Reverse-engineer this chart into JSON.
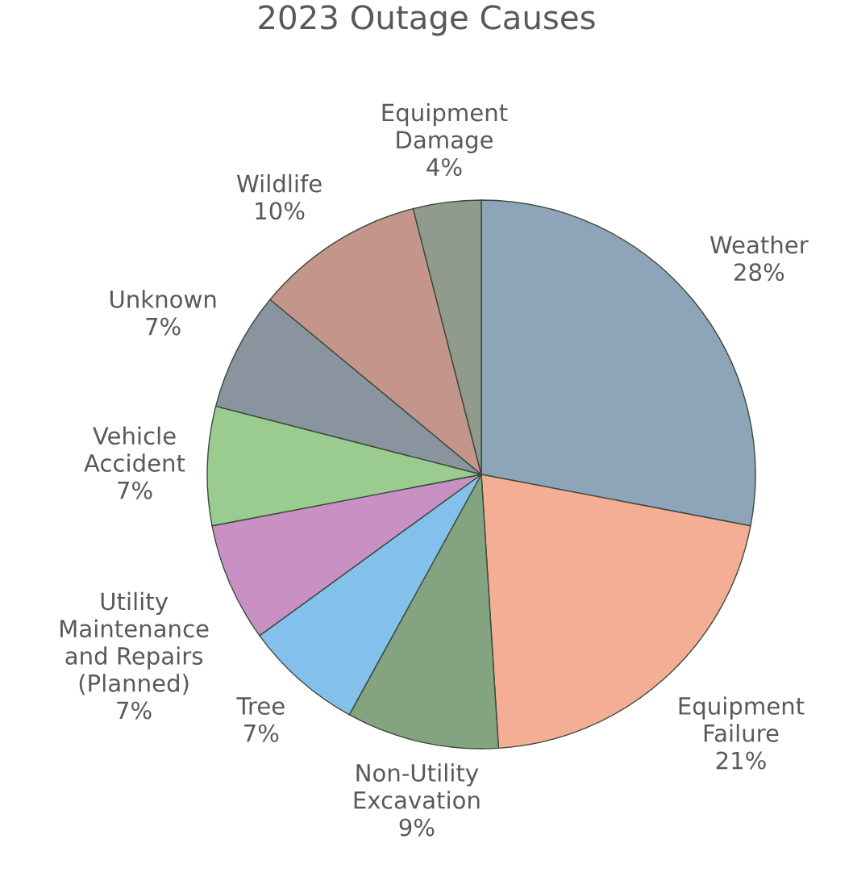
{
  "chart_data": {
    "type": "pie",
    "title": "2023 Outage Causes",
    "categories": [
      "Weather",
      "Equipment Failure",
      "Non-Utility Excavation",
      "Tree",
      "Utility Maintenance and Repairs (Planned)",
      "Vehicle Accident",
      "Unknown",
      "Wildlife",
      "Equipment Damage"
    ],
    "values": [
      28,
      21,
      9,
      7,
      7,
      7,
      7,
      10,
      4
    ],
    "value_labels": [
      "28%",
      "21%",
      "9%",
      "7%",
      "7%",
      "7%",
      "7%",
      "10%",
      "4%"
    ],
    "colors": [
      "#8ea4b8",
      "#f3ae95",
      "#84a380",
      "#84c0ec",
      "#c890c3",
      "#9bcc8f",
      "#8a949f",
      "#c4968b",
      "#909b8d"
    ],
    "legend": false
  }
}
